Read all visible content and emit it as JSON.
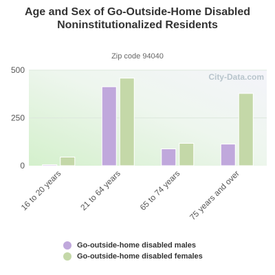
{
  "chart_data": {
    "type": "bar",
    "title": "Age and Sex of Go-Outside-Home Disabled Noninstitutionalized Residents",
    "subtitle": "Zip code 94040",
    "categories": [
      "16 to 20 years",
      "21 to 64 years",
      "65 to 74 years",
      "75 years and over"
    ],
    "series": [
      {
        "name": "Go-outside-home disabled males",
        "color": "#c0a8dc",
        "values": [
          5,
          413,
          88,
          113
        ]
      },
      {
        "name": "Go-outside-home disabled females",
        "color": "#c4d8a8",
        "values": [
          45,
          458,
          117,
          378
        ]
      }
    ],
    "y_ticks": [
      "0",
      "250",
      "500"
    ],
    "ylim": [
      0,
      500
    ],
    "grid": true,
    "legend_position": "bottom",
    "watermark": "City-Data.com"
  }
}
